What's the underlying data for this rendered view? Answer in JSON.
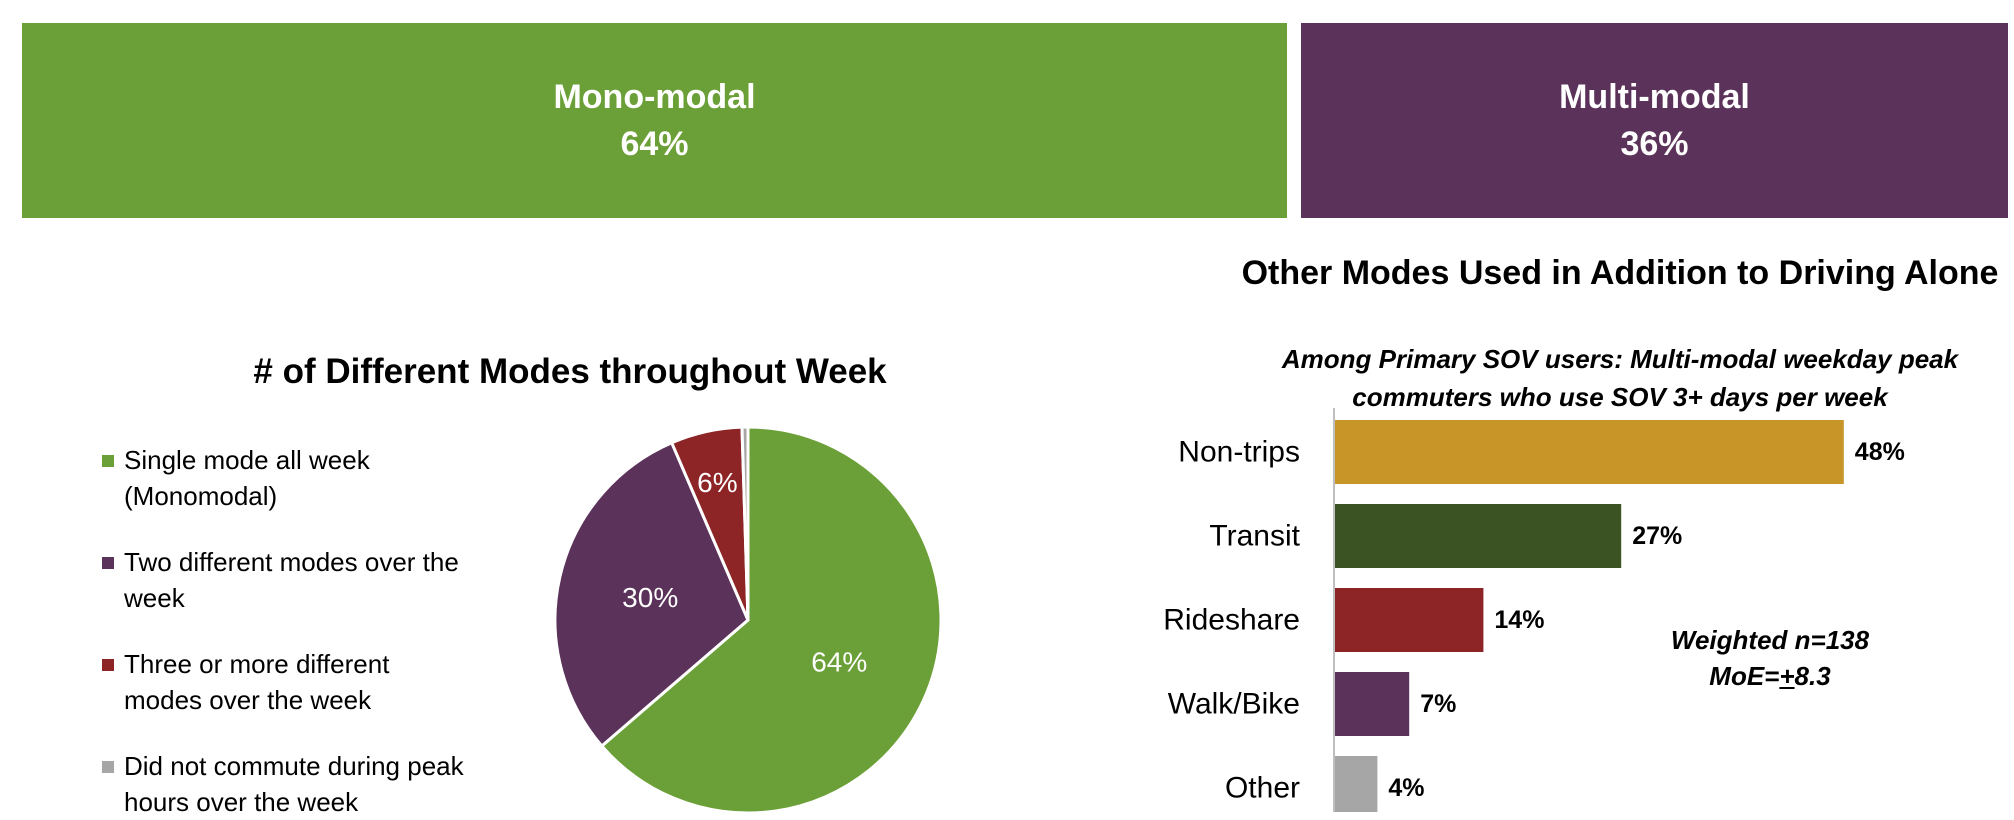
{
  "banners": {
    "mono": {
      "label": "Mono-modal",
      "value": "64%",
      "color": "#6b9f37"
    },
    "multi": {
      "label": "Multi-modal",
      "value": "36%",
      "color": "#5b3259"
    }
  },
  "note": {
    "line1": "Weighted n=138",
    "moe_prefix": "MoE=",
    "moe_pm": "+",
    "moe_value": "8.3"
  },
  "chart_data": [
    {
      "type": "pie",
      "title": "# of Different Modes throughout Week",
      "categories": [
        "Single mode all week (Monomodal)",
        "Two different modes over the week",
        "Three or more different modes over the week",
        "Did not commute during peak hours over the week"
      ],
      "values": [
        64,
        30,
        6,
        0.5
      ],
      "data_labels": [
        "64%",
        "30%",
        "6%",
        ""
      ],
      "colors": [
        "#6b9f37",
        "#5b3259",
        "#8d2426",
        "#a6a6a6"
      ],
      "legend": "left"
    },
    {
      "type": "bar",
      "orientation": "horizontal",
      "title": "Other Modes Used in Addition to Driving Alone",
      "subtitle": "Among Primary SOV users: Multi-modal weekday peak commuters who use SOV 3+ days per week",
      "categories": [
        "Non-trips",
        "Transit",
        "Rideshare",
        "Walk/Bike",
        "Other"
      ],
      "values": [
        48,
        27,
        14,
        7,
        4
      ],
      "data_labels": [
        "48%",
        "27%",
        "14%",
        "7%",
        "4%"
      ],
      "colors": [
        "#c79528",
        "#3b5323",
        "#8d2426",
        "#5b3259",
        "#a6a6a6"
      ],
      "xlim": [
        0,
        60
      ]
    }
  ]
}
